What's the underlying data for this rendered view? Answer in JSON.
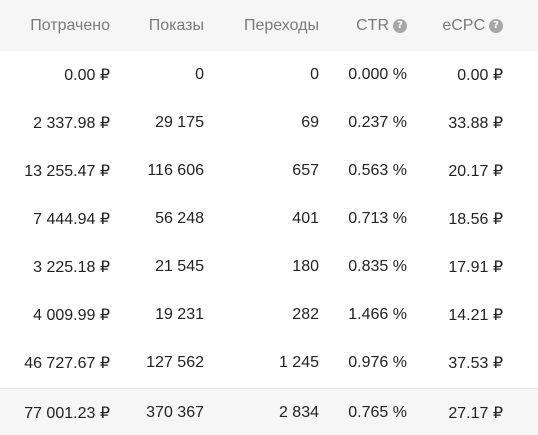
{
  "table": {
    "columns": [
      {
        "label": "Потрачено",
        "help": false
      },
      {
        "label": "Показы",
        "help": false
      },
      {
        "label": "Переходы",
        "help": false
      },
      {
        "label": "CTR",
        "help": true
      },
      {
        "label": "eCPC",
        "help": true
      }
    ],
    "help_icon": "question-circle-icon",
    "rows": [
      [
        "0.00 ₽",
        "0",
        "0",
        "0.000 %",
        "0.00 ₽"
      ],
      [
        "2 337.98 ₽",
        "29 175",
        "69",
        "0.237 %",
        "33.88 ₽"
      ],
      [
        "13 255.47 ₽",
        "116 606",
        "657",
        "0.563 %",
        "20.17 ₽"
      ],
      [
        "7 444.94 ₽",
        "56 248",
        "401",
        "0.713 %",
        "18.56 ₽"
      ],
      [
        "3 225.18 ₽",
        "21 545",
        "180",
        "0.835 %",
        "17.91 ₽"
      ],
      [
        "4 009.99 ₽",
        "19 231",
        "282",
        "1.466 %",
        "14.21 ₽"
      ],
      [
        "46 727.67 ₽",
        "127 562",
        "1 245",
        "0.976 %",
        "37.53 ₽"
      ]
    ],
    "total": [
      "77 001.23 ₽",
      "370 367",
      "2 834",
      "0.765 %",
      "27.17 ₽"
    ]
  }
}
